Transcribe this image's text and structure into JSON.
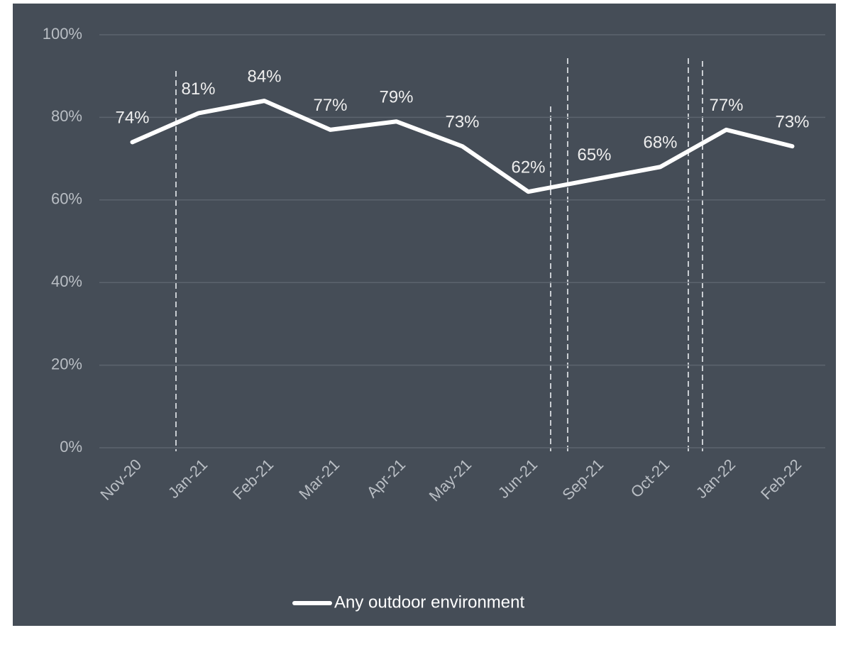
{
  "chart_data": {
    "type": "line",
    "categories": [
      "Nov-20",
      "Jan-21",
      "Feb-21",
      "Mar-21",
      "Apr-21",
      "May-21",
      "Jun-21",
      "Sep-21",
      "Oct-21",
      "Jan-22",
      "Feb-22"
    ],
    "series": [
      {
        "name": "Any outdoor environment",
        "color": "#ffffff",
        "values": [
          74,
          81,
          84,
          77,
          79,
          73,
          62,
          65,
          68,
          77,
          73
        ],
        "value_labels": [
          "74%",
          "81%",
          "84%",
          "77%",
          "79%",
          "73%",
          "62%",
          "65%",
          "68%",
          "77%",
          "73%"
        ]
      }
    ],
    "ylim": [
      0,
      100
    ],
    "yticks": [
      {
        "value": 0,
        "label": "0%"
      },
      {
        "value": 20,
        "label": "20%"
      },
      {
        "value": 40,
        "label": "40%"
      },
      {
        "value": 60,
        "label": "60%"
      },
      {
        "value": 80,
        "label": "80%"
      },
      {
        "value": 100,
        "label": "100%"
      }
    ],
    "grid": true,
    "legend": "bottom"
  }
}
